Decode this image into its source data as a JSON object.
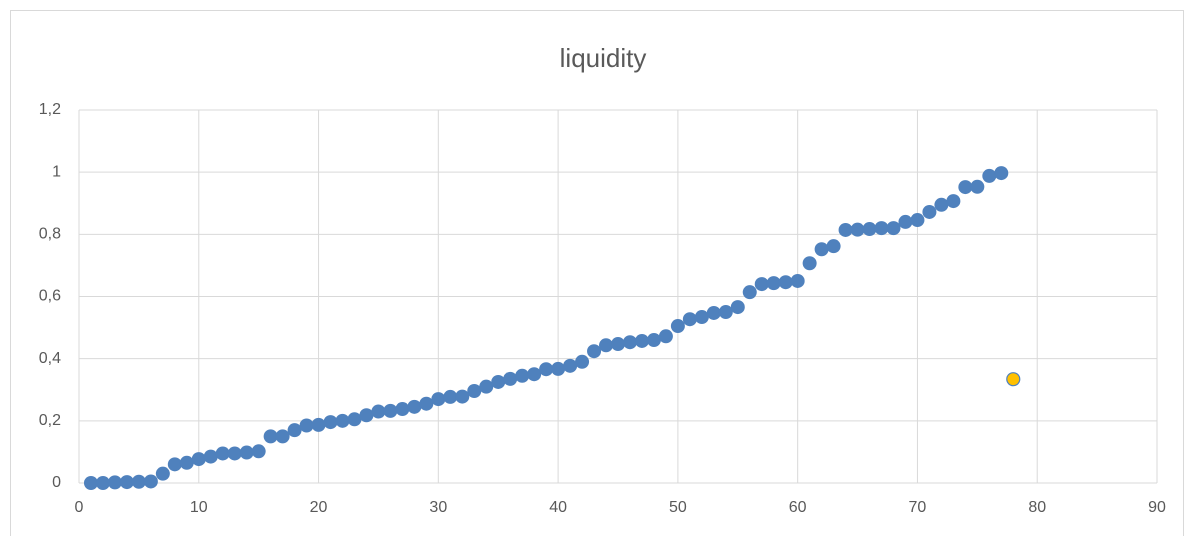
{
  "chart_data": {
    "type": "scatter",
    "title": "liquidity",
    "series": [
      {
        "color": "#4f81bd",
        "x": [
          1,
          2,
          3,
          4,
          5,
          6,
          7,
          8,
          9,
          10,
          11,
          12,
          13,
          14,
          15,
          16,
          17,
          18,
          19,
          20,
          21,
          22,
          23,
          24,
          25,
          26,
          27,
          28,
          29,
          30,
          31,
          32,
          33,
          34,
          35,
          36,
          37,
          38,
          39,
          40,
          41,
          42,
          43,
          44,
          45,
          46,
          47,
          48,
          49,
          50,
          51,
          52,
          53,
          54,
          55,
          56,
          57,
          58,
          59,
          60,
          61,
          62,
          63,
          64,
          65,
          66,
          67,
          68,
          69,
          70,
          71,
          72,
          73,
          74,
          75,
          76,
          77
        ],
        "values": [
          0,
          0,
          0.002,
          0.003,
          0.004,
          0.005,
          0.03,
          0.06,
          0.065,
          0.077,
          0.085,
          0.095,
          0.095,
          0.098,
          0.102,
          0.15,
          0.15,
          0.17,
          0.185,
          0.187,
          0.196,
          0.2,
          0.205,
          0.218,
          0.23,
          0.232,
          0.238,
          0.245,
          0.255,
          0.27,
          0.277,
          0.278,
          0.296,
          0.31,
          0.325,
          0.335,
          0.345,
          0.35,
          0.366,
          0.367,
          0.377,
          0.39,
          0.424,
          0.443,
          0.447,
          0.453,
          0.457,
          0.46,
          0.472,
          0.505,
          0.527,
          0.534,
          0.547,
          0.55,
          0.566,
          0.614,
          0.64,
          0.643,
          0.646,
          0.65,
          0.707,
          0.752,
          0.762,
          0.814,
          0.815,
          0.817,
          0.82,
          0.82,
          0.84,
          0.846,
          0.872,
          0.895,
          0.907,
          0.952,
          0.953,
          0.988,
          0.997
        ]
      },
      {
        "color": "#ffc000",
        "x": [
          78
        ],
        "values": [
          0.334
        ]
      }
    ],
    "xlim": [
      0,
      90
    ],
    "xticks": [
      0,
      10,
      20,
      30,
      40,
      50,
      60,
      70,
      80,
      90
    ],
    "ylim": [
      0,
      1.2
    ],
    "yticks": [
      0,
      {
        "value": 0.2,
        "label": "0,2"
      },
      {
        "value": 0.4,
        "label": "0,4"
      },
      {
        "value": 0.6,
        "label": "0,6"
      },
      {
        "value": 0.8,
        "label": "0,8"
      },
      1,
      {
        "value": 1.2,
        "label": "1,2"
      }
    ],
    "grid": true
  }
}
